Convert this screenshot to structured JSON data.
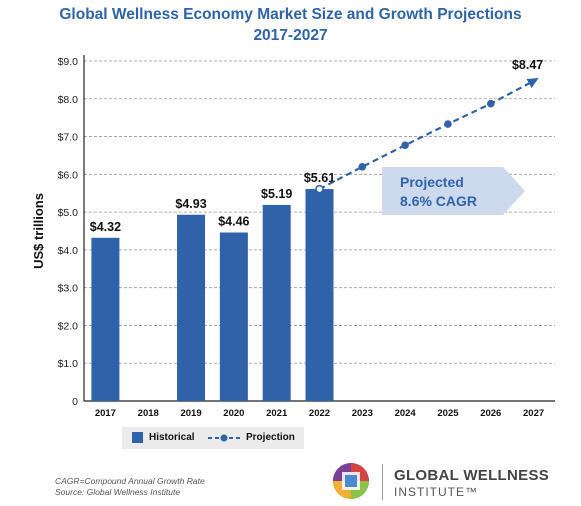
{
  "chart_data": {
    "type": "bar",
    "title_line1": "Global Wellness Economy Market Size and Growth Projections",
    "title_line2": "2017-2027",
    "ylabel": "US$ trillions",
    "ylim": [
      0,
      9
    ],
    "yticks": [
      "0",
      "$1.0",
      "$2.0",
      "$3.0",
      "$4.0",
      "$5.0",
      "$6.0",
      "$7.0",
      "$8.0",
      "$9.0"
    ],
    "grid": "horizontal dashed",
    "categories": [
      "2017",
      "2018",
      "2019",
      "2020",
      "2021",
      "2022",
      "2023",
      "2024",
      "2025",
      "2026",
      "2027"
    ],
    "series": [
      {
        "name": "Historical",
        "type": "bar",
        "values": [
          4.32,
          null,
          4.93,
          4.46,
          5.19,
          5.61,
          null,
          null,
          null,
          null,
          null
        ],
        "labels": [
          "$4.32",
          null,
          "$4.93",
          "$4.46",
          "$5.19",
          "$5.61",
          null,
          null,
          null,
          null,
          null
        ]
      },
      {
        "name": "Projection",
        "type": "line",
        "values": [
          null,
          null,
          null,
          null,
          null,
          5.61,
          6.2,
          6.77,
          7.33,
          7.87,
          8.47
        ],
        "end_label": "$8.47"
      }
    ],
    "annotation_line1": "Projected",
    "annotation_line2": "8.6% CAGR",
    "legend_position": "bottom-left"
  },
  "notes": {
    "line1": "CAGR=Compound Annual Growth Rate",
    "line2": "Source: Global Wellness Institute"
  },
  "logo": {
    "line1": "GLOBAL WELLNESS",
    "line2": "INSTITUTE™"
  },
  "colors": {
    "bar": "#2f62a8",
    "title": "#2e64a8",
    "annotation_fill": "#cdd9ec",
    "annotation_text": "#2e64a8"
  }
}
